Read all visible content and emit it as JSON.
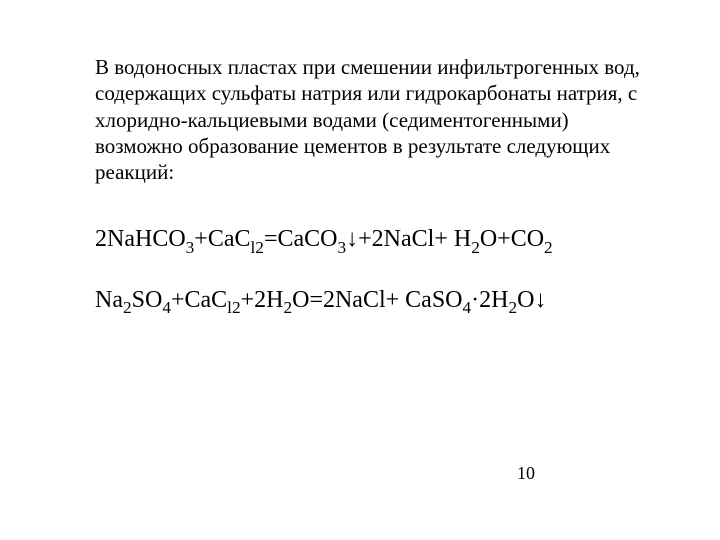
{
  "text_color": "#000000",
  "background_color": "#ffffff",
  "paragraph": {
    "text": "В водоносных пластах при смешении инфильтрогенных вод, содержащих сульфаты натрия или гидрокарбонаты натрия, с хлоридно-кальциевыми водами (седиментогенными) возможно образование цементов в результате следующих реакций:",
    "fontsize": 21,
    "line_height": 1.25
  },
  "equations": {
    "fontsize": 24,
    "items": [
      {
        "tokens": [
          {
            "t": "2NaHCO"
          },
          {
            "t": "3",
            "sub": true
          },
          {
            "t": "+CaC"
          },
          {
            "t": "l2",
            "sub": true
          },
          {
            "t": "=CaCO"
          },
          {
            "t": "3",
            "sub": true
          },
          {
            "t": "↓+2NaCl+ H"
          },
          {
            "t": "2",
            "sub": true
          },
          {
            "t": "O+CO"
          },
          {
            "t": "2",
            "sub": true
          }
        ]
      },
      {
        "tokens": [
          {
            "t": "Na"
          },
          {
            "t": "2",
            "sub": true
          },
          {
            "t": "SO"
          },
          {
            "t": "4",
            "sub": true
          },
          {
            "t": "+CaC"
          },
          {
            "t": "l2",
            "sub": true
          },
          {
            "t": "+2H"
          },
          {
            "t": "2",
            "sub": true
          },
          {
            "t": "O=2NaCl+ CaSO"
          },
          {
            "t": "4",
            "sub": true
          },
          {
            "t": "·2H"
          },
          {
            "t": "2",
            "sub": true
          },
          {
            "t": "O↓"
          }
        ]
      }
    ]
  },
  "page_number": "10"
}
